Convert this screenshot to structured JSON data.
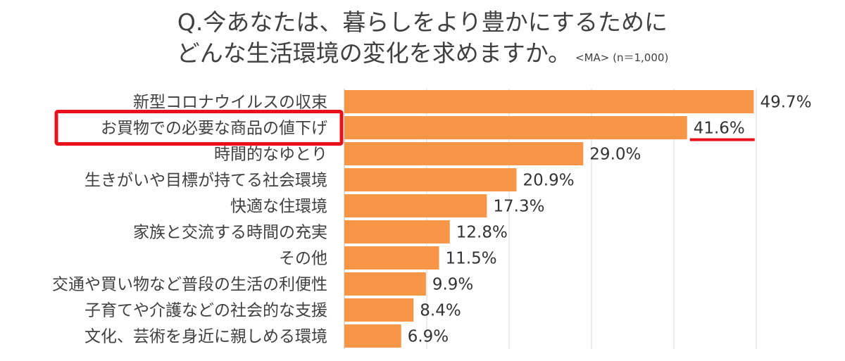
{
  "chart_data": {
    "type": "bar",
    "orientation": "horizontal",
    "title_line1": "Q.今あなたは、暮らしをより豊かにするために",
    "title_line2": "どんな生活環境の変化を求めますか。",
    "title_note": "<MA> (n＝1,000)",
    "categories": [
      "新型コロナウイルスの収束",
      "お買物での必要な商品の値下げ",
      "時間的なゆとり",
      "生きがいや目標が持てる社会環境",
      "快適な住環境",
      "家族と交流する時間の充実",
      "その他",
      "交通や買い物など普段の生活の利便性",
      "子育てや介護などの社会的な支援",
      "文化、芸術を身近に親しめる環境"
    ],
    "values": [
      49.7,
      41.6,
      29.0,
      20.9,
      17.3,
      12.8,
      11.5,
      9.9,
      8.4,
      6.9
    ],
    "value_labels": [
      "49.7%",
      "41.6%",
      "29.0%",
      "20.9%",
      "17.3%",
      "12.8%",
      "11.5%",
      "9.9%",
      "8.4%",
      "6.9%"
    ],
    "xlim": [
      0,
      60
    ],
    "grid": true,
    "highlight_index": 1,
    "colors": {
      "bar": "#F79646",
      "highlight": "#E8101B",
      "grid": "#D9D9D9",
      "text": "#404040"
    }
  }
}
